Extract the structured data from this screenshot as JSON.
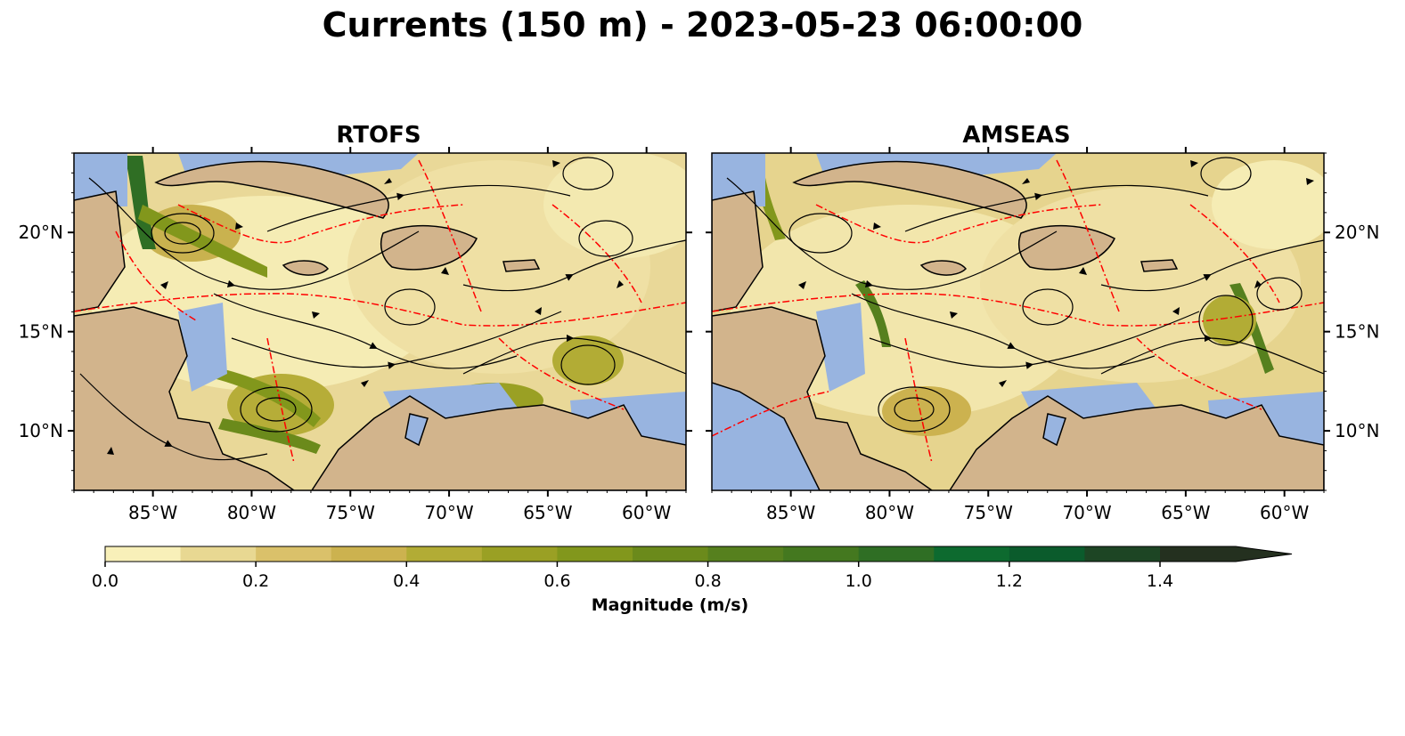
{
  "figure": {
    "title": "Currents (150 m) - 2023-05-23 06:00:00"
  },
  "panels": [
    {
      "id": "rtofs",
      "title": "RTOFS"
    },
    {
      "id": "amseas",
      "title": "AMSEAS"
    }
  ],
  "axes": {
    "lon_ticks": [
      "85°W",
      "80°W",
      "75°W",
      "70°W",
      "65°W",
      "60°W"
    ],
    "lat_ticks": [
      "20°N",
      "15°N",
      "10°N"
    ],
    "lon_range": [
      -89,
      -58
    ],
    "lat_range": [
      7,
      24
    ]
  },
  "colorbar": {
    "label": "Magnitude (m/s)",
    "tick_labels": [
      "0.0",
      "0.2",
      "0.4",
      "0.6",
      "0.8",
      "1.0",
      "1.2",
      "1.4"
    ],
    "bins": [
      0.0,
      0.1,
      0.2,
      0.3,
      0.4,
      0.5,
      0.6,
      0.7,
      0.8,
      0.9,
      1.0,
      1.1,
      1.2,
      1.3,
      1.4,
      1.5
    ],
    "extend": "max",
    "colors": [
      "#f8f0b9",
      "#e8d892",
      "#dac16a",
      "#ccb24f",
      "#b2ac35",
      "#9aa024",
      "#82971c",
      "#6b8a1b",
      "#56801e",
      "#44781f",
      "#2f6e24",
      "#0d6a2f",
      "#0b5b2c",
      "#1d4524",
      "#24301f",
      "#1b2a1a"
    ]
  },
  "map_colors": {
    "land": "#d2b48c",
    "shallow_water": "#98b4e0",
    "eez_lines": "#ff0000",
    "streamlines": "#000000"
  }
}
